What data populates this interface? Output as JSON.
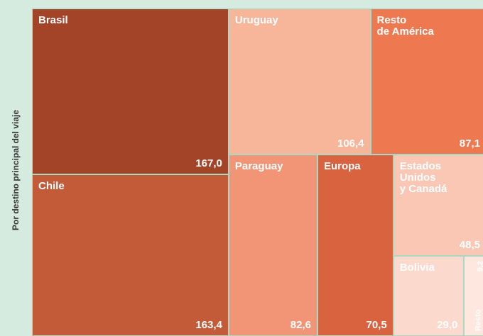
{
  "chart_data": {
    "type": "treemap",
    "axis_label": "Por destino principal del viaje",
    "categories": [
      "Brasil",
      "Chile",
      "Uruguay",
      "Resto\nde América",
      "Paraguay",
      "Europa",
      "Estados\nUnidos\ny Canadá",
      "Bolivia",
      "Resto"
    ],
    "values": [
      167.0,
      163.4,
      106.4,
      87.1,
      82.6,
      70.5,
      48.5,
      29.0,
      9.2
    ],
    "value_labels": [
      "167,0",
      "163,4",
      "106,4",
      "87,1",
      "82,6",
      "70,5",
      "48,5",
      "29,0",
      "9,2"
    ],
    "colors": [
      "#a34428",
      "#c35a38",
      "#f7b59a",
      "#ee7850",
      "#f29576",
      "#d9623f",
      "#f9c7b3",
      "#fbd9cc",
      "#fde7df"
    ]
  }
}
